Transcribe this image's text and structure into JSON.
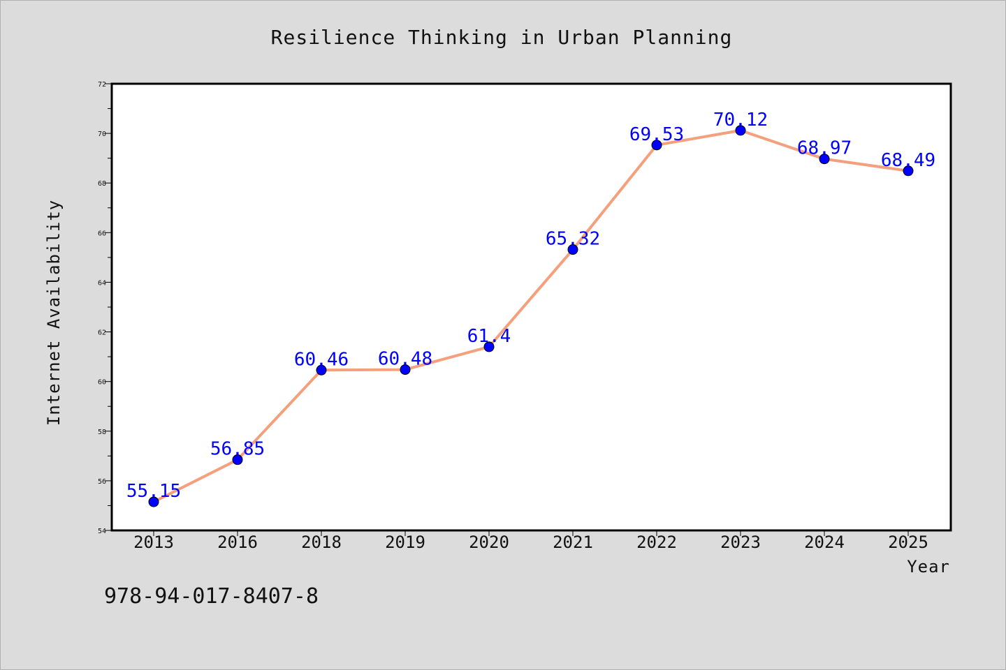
{
  "chart_data": {
    "type": "line",
    "title": "Resilience Thinking in Urban Planning",
    "xlabel": "Year",
    "ylabel": "Internet Availability",
    "categories": [
      "2013",
      "2016",
      "2018",
      "2019",
      "2020",
      "2021",
      "2022",
      "2023",
      "2024",
      "2025"
    ],
    "series": [
      {
        "values": [
          55.15,
          56.85,
          60.46,
          60.48,
          61.4,
          65.32,
          69.53,
          70.12,
          68.97,
          68.49
        ],
        "labels": [
          "55.15",
          "56.85",
          "60.46",
          "60.48",
          "61.4",
          "65.32",
          "69.53",
          "70.12",
          "68.97",
          "68.49"
        ]
      }
    ],
    "ylim": [
      54,
      72
    ],
    "yticks": [
      "54",
      "56",
      "58",
      "60",
      "62",
      "64",
      "66",
      "68",
      "70",
      "72"
    ],
    "grid": false,
    "line_color": "#f4a07c",
    "marker_color": "#0000ff",
    "label_color": "#0000ff"
  },
  "footer": {
    "isbn": "978-94-017-8407-8"
  }
}
